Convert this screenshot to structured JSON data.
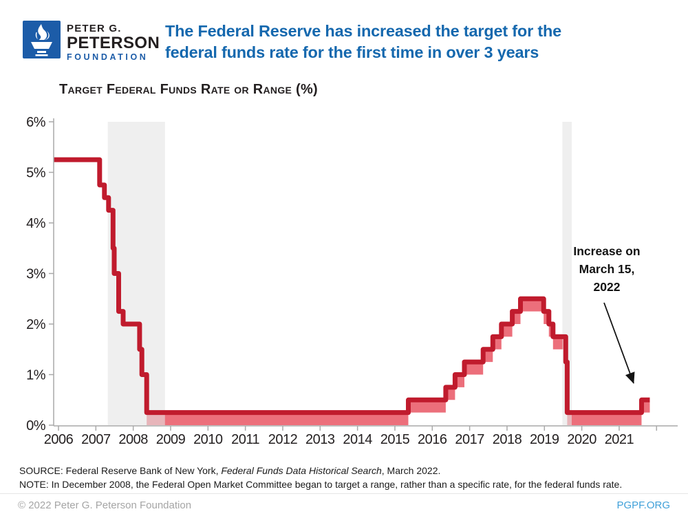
{
  "header": {
    "logo": {
      "line1": "PETER G.",
      "line2": "PETERSON",
      "line3": "FOUNDATION"
    },
    "title": "The Federal Reserve has increased the target for the\nfederal funds rate for the first time in over 3 years"
  },
  "chart_data": {
    "type": "step-area",
    "title": "Target Federal Funds Rate or Range (%)",
    "unit": "percent",
    "xlim": [
      2006.5,
      2023.3
    ],
    "ylim": [
      0,
      6
    ],
    "y_tick_labels": [
      "0%",
      "1%",
      "2%",
      "3%",
      "4%",
      "5%",
      "6%"
    ],
    "x_tick_years": [
      2006,
      2007,
      2008,
      2009,
      2010,
      2011,
      2012,
      2013,
      2014,
      2015,
      2016,
      2017,
      2018,
      2019,
      2020,
      2021
    ],
    "x_ticks_unlabeled": [
      2022
    ],
    "recessions": [
      {
        "start": 2007.92,
        "end": 2009.45
      },
      {
        "start": 2020.08,
        "end": 2020.33
      }
    ],
    "segments": [
      {
        "start": 2006.47,
        "end": 2007.7,
        "upper": 5.25,
        "lower": 5.25,
        "rate": "5.25%"
      },
      {
        "start": 2007.7,
        "end": 2007.83,
        "upper": 4.75,
        "lower": 4.75,
        "rate": "4.75%"
      },
      {
        "start": 2007.83,
        "end": 2007.94,
        "upper": 4.5,
        "lower": 4.5,
        "rate": "4.5%"
      },
      {
        "start": 2007.94,
        "end": 2008.06,
        "upper": 4.25,
        "lower": 4.25,
        "rate": "4.25%"
      },
      {
        "start": 2008.06,
        "end": 2008.09,
        "upper": 3.5,
        "lower": 3.5,
        "rate": "3.5%"
      },
      {
        "start": 2008.09,
        "end": 2008.21,
        "upper": 3.0,
        "lower": 3.0,
        "rate": "3%"
      },
      {
        "start": 2008.21,
        "end": 2008.33,
        "upper": 2.25,
        "lower": 2.25,
        "rate": "2.25%"
      },
      {
        "start": 2008.33,
        "end": 2008.77,
        "upper": 2.0,
        "lower": 2.0,
        "rate": "2%"
      },
      {
        "start": 2008.77,
        "end": 2008.83,
        "upper": 1.5,
        "lower": 1.5,
        "rate": "1.5%"
      },
      {
        "start": 2008.83,
        "end": 2008.96,
        "upper": 1.0,
        "lower": 1.0,
        "rate": "1%"
      },
      {
        "start": 2008.96,
        "end": 2015.96,
        "upper": 0.25,
        "lower": 0,
        "rate": "0–0.25%"
      },
      {
        "start": 2015.96,
        "end": 2016.96,
        "upper": 0.5,
        "lower": 0.25,
        "rate": "0.25–0.5%"
      },
      {
        "start": 2016.96,
        "end": 2017.21,
        "upper": 0.75,
        "lower": 0.5,
        "rate": "0.5–0.75%"
      },
      {
        "start": 2017.21,
        "end": 2017.46,
        "upper": 1.0,
        "lower": 0.75,
        "rate": "0.75–1%"
      },
      {
        "start": 2017.46,
        "end": 2017.96,
        "upper": 1.25,
        "lower": 1.0,
        "rate": "1–1.25%"
      },
      {
        "start": 2017.96,
        "end": 2018.22,
        "upper": 1.5,
        "lower": 1.25,
        "rate": "1.25–1.5%"
      },
      {
        "start": 2018.22,
        "end": 2018.45,
        "upper": 1.75,
        "lower": 1.5,
        "rate": "1.5–1.75%"
      },
      {
        "start": 2018.45,
        "end": 2018.74,
        "upper": 2.0,
        "lower": 1.75,
        "rate": "1.75–2%"
      },
      {
        "start": 2018.74,
        "end": 2018.96,
        "upper": 2.25,
        "lower": 2.0,
        "rate": "2–2.25%"
      },
      {
        "start": 2018.96,
        "end": 2019.58,
        "upper": 2.5,
        "lower": 2.25,
        "rate": "2.25–2.5%"
      },
      {
        "start": 2019.58,
        "end": 2019.72,
        "upper": 2.25,
        "lower": 2.0,
        "rate": "2–2.25%"
      },
      {
        "start": 2019.72,
        "end": 2019.83,
        "upper": 2.0,
        "lower": 1.75,
        "rate": "1.75–2%"
      },
      {
        "start": 2019.83,
        "end": 2020.17,
        "upper": 1.75,
        "lower": 1.5,
        "rate": "1.5–1.75%"
      },
      {
        "start": 2020.17,
        "end": 2020.21,
        "upper": 1.25,
        "lower": 1.0,
        "rate": "1–1.25%"
      },
      {
        "start": 2020.21,
        "end": 2022.2,
        "upper": 0.25,
        "lower": 0,
        "rate": "0–0.25%"
      },
      {
        "start": 2022.2,
        "end": 2022.42,
        "upper": 0.5,
        "lower": 0.25,
        "rate": "0.25–0.5%"
      }
    ],
    "annotation": {
      "text": "Increase on\nMarch 15,\n2022"
    },
    "colors": {
      "line": "#c01b2d",
      "band": "#ec6f7b",
      "recession": "rgba(229,229,229,0.6)",
      "axis": "#a9a9a9",
      "title_blue": "#1568ae"
    }
  },
  "footer": {
    "source_prefix": "SOURCE: Federal Reserve Bank of New York, ",
    "source_italic": "Federal Funds Data Historical Search",
    "source_suffix": ", March 2022.",
    "note": "NOTE: In December 2008, the Federal Open Market Committee began to target a range, rather than a specific rate, for the federal funds rate.",
    "copyright": "© 2022 Peter G. Peterson Foundation",
    "site": "PGPF.ORG"
  }
}
